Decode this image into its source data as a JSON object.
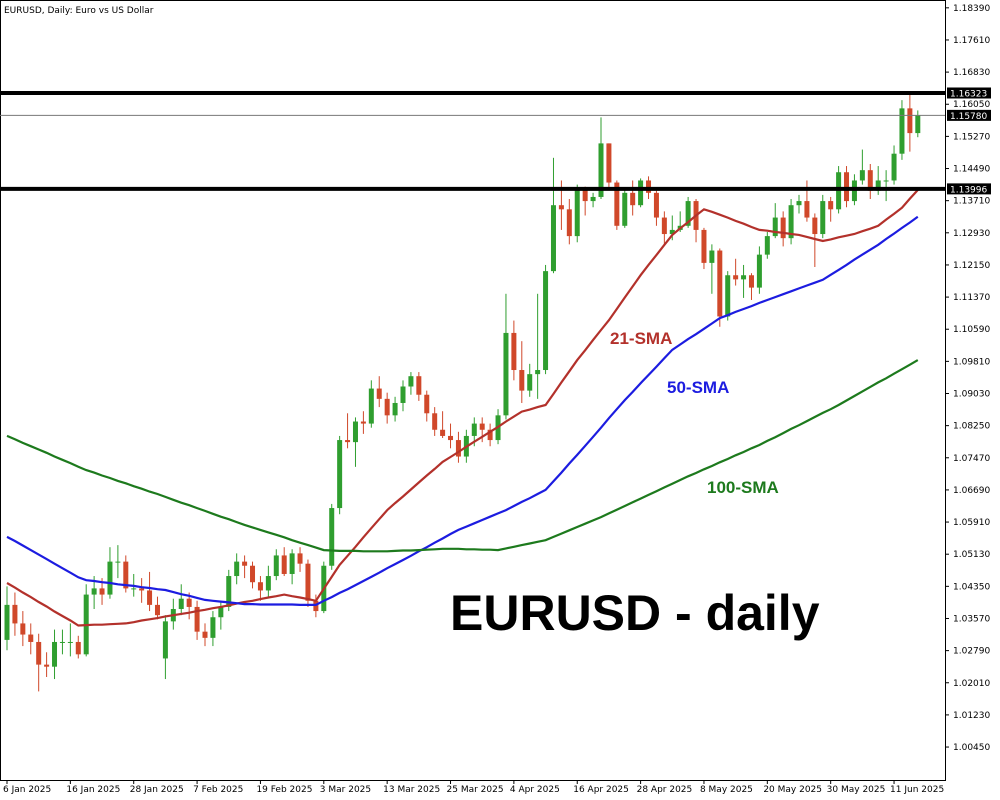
{
  "chart_data": {
    "type": "candlestick",
    "title": "EURUSD, Daily:  Euro vs US Dollar",
    "annotation": "EURUSD - daily",
    "up_color": "#2f9e2f",
    "down_color": "#d0482a",
    "categories": [
      "6 Jan 2025",
      null,
      null,
      null,
      null,
      null,
      null,
      null,
      "16 Jan 2025",
      null,
      null,
      null,
      null,
      null,
      null,
      null,
      "28 Jan 2025",
      null,
      null,
      null,
      null,
      null,
      null,
      null,
      "7 Feb 2025",
      null,
      null,
      null,
      null,
      null,
      null,
      null,
      "19 Feb 2025",
      null,
      null,
      null,
      null,
      null,
      null,
      null,
      "3 Mar 2025",
      null,
      null,
      null,
      null,
      null,
      null,
      null,
      "13 Mar 2025",
      null,
      null,
      null,
      null,
      null,
      null,
      null,
      "25 Mar 2025",
      null,
      null,
      null,
      null,
      null,
      null,
      null,
      "4 Apr 2025",
      null,
      null,
      null,
      null,
      null,
      null,
      null,
      "16 Apr 2025",
      null,
      null,
      null,
      null,
      null,
      null,
      null,
      "28 Apr 2025",
      null,
      null,
      null,
      null,
      null,
      null,
      null,
      "8 May 2025",
      null,
      null,
      null,
      null,
      null,
      null,
      null,
      "20 May 2025",
      null,
      null,
      null,
      null,
      null,
      null,
      null,
      "30 May 2025",
      null,
      null,
      null,
      null,
      null,
      null,
      null,
      "11 Jun 2025",
      null,
      null,
      null
    ],
    "ohlc": [
      [
        1.0305,
        1.0435,
        1.028,
        1.039
      ],
      [
        1.039,
        1.042,
        1.0315,
        1.0345
      ],
      [
        1.0345,
        1.0375,
        1.029,
        1.0318
      ],
      [
        1.0318,
        1.0345,
        1.027,
        1.03
      ],
      [
        1.03,
        1.032,
        1.018,
        1.0245
      ],
      [
        1.0245,
        1.0275,
        1.0215,
        1.024
      ],
      [
        1.024,
        1.033,
        1.021,
        1.03
      ],
      [
        1.03,
        1.033,
        1.027,
        1.03
      ],
      [
        1.03,
        1.0345,
        1.0265,
        1.03
      ],
      [
        1.03,
        1.0315,
        1.026,
        1.027
      ],
      [
        1.027,
        1.044,
        1.0265,
        1.0415
      ],
      [
        1.0415,
        1.046,
        1.038,
        1.043
      ],
      [
        1.043,
        1.0455,
        1.039,
        1.0415
      ],
      [
        1.0415,
        1.053,
        1.0405,
        1.0495
      ],
      [
        1.0495,
        1.0535,
        1.0455,
        1.0495
      ],
      [
        1.0495,
        1.051,
        1.042,
        1.043
      ],
      [
        1.043,
        1.0465,
        1.041,
        1.043
      ],
      [
        1.043,
        1.0455,
        1.0395,
        1.0425
      ],
      [
        1.0425,
        1.047,
        1.0375,
        1.039
      ],
      [
        1.039,
        1.041,
        1.0355,
        1.0365
      ],
      [
        1.026,
        1.0365,
        1.021,
        1.035
      ],
      [
        1.035,
        1.0405,
        1.033,
        1.038
      ],
      [
        1.038,
        1.044,
        1.0365,
        1.0405
      ],
      [
        1.0405,
        1.042,
        1.0355,
        1.0385
      ],
      [
        1.0385,
        1.04,
        1.0305,
        1.0325
      ],
      [
        1.0325,
        1.0345,
        1.029,
        1.031
      ],
      [
        1.031,
        1.0375,
        1.029,
        1.036
      ],
      [
        1.036,
        1.04,
        1.033,
        1.0385
      ],
      [
        1.0385,
        1.0475,
        1.0375,
        1.046
      ],
      [
        1.046,
        1.0515,
        1.044,
        1.0495
      ],
      [
        1.0495,
        1.051,
        1.0455,
        1.0485
      ],
      [
        1.0485,
        1.0495,
        1.043,
        1.0445
      ],
      [
        1.0445,
        1.046,
        1.04,
        1.0425
      ],
      [
        1.0425,
        1.0485,
        1.041,
        1.046
      ],
      [
        1.046,
        1.0525,
        1.045,
        1.051
      ],
      [
        1.051,
        1.053,
        1.046,
        1.0465
      ],
      [
        1.0465,
        1.0525,
        1.044,
        1.0515
      ],
      [
        1.0515,
        1.053,
        1.047,
        1.049
      ],
      [
        1.049,
        1.05,
        1.0385,
        1.04
      ],
      [
        1.04,
        1.0415,
        1.036,
        1.0375
      ],
      [
        1.0375,
        1.0495,
        1.037,
        1.0485
      ],
      [
        1.0485,
        1.0635,
        1.0475,
        1.0625
      ],
      [
        1.0625,
        1.08,
        1.061,
        1.079
      ],
      [
        1.079,
        1.0855,
        1.077,
        1.0785
      ],
      [
        1.0785,
        1.0845,
        1.0725,
        1.0835
      ],
      [
        1.0835,
        1.086,
        1.0805,
        1.083
      ],
      [
        1.083,
        1.0935,
        1.082,
        1.0915
      ],
      [
        1.0915,
        1.0945,
        1.087,
        1.089
      ],
      [
        1.089,
        1.0905,
        1.083,
        1.085
      ],
      [
        1.085,
        1.0895,
        1.0835,
        1.088
      ],
      [
        1.088,
        1.0935,
        1.086,
        1.092
      ],
      [
        1.092,
        1.0955,
        1.09,
        1.0945
      ],
      [
        1.0945,
        1.0955,
        1.0885,
        1.09
      ],
      [
        1.09,
        1.091,
        1.0835,
        1.0855
      ],
      [
        1.0855,
        1.087,
        1.08,
        1.0815
      ],
      [
        1.0815,
        1.086,
        1.0795,
        1.08
      ],
      [
        1.08,
        1.083,
        1.077,
        1.079
      ],
      [
        1.079,
        1.081,
        1.0735,
        1.075
      ],
      [
        1.075,
        1.0815,
        1.0735,
        1.08
      ],
      [
        1.08,
        1.0845,
        1.0775,
        1.083
      ],
      [
        1.083,
        1.0845,
        1.0785,
        1.0815
      ],
      [
        1.0815,
        1.083,
        1.0775,
        1.079
      ],
      [
        1.079,
        1.0865,
        1.078,
        1.085
      ],
      [
        1.085,
        1.1145,
        1.084,
        1.105
      ],
      [
        1.105,
        1.108,
        1.0935,
        1.096
      ],
      [
        1.096,
        1.103,
        1.088,
        1.091
      ],
      [
        1.091,
        1.0975,
        1.0895,
        1.095
      ],
      [
        1.095,
        1.1145,
        1.089,
        1.096
      ],
      [
        1.096,
        1.1215,
        1.095,
        1.12
      ],
      [
        1.12,
        1.1475,
        1.1195,
        1.136
      ],
      [
        1.136,
        1.142,
        1.13,
        1.135
      ],
      [
        1.135,
        1.1375,
        1.1265,
        1.1285
      ],
      [
        1.1285,
        1.141,
        1.127,
        1.14
      ],
      [
        1.14,
        1.1405,
        1.1335,
        1.137
      ],
      [
        1.137,
        1.139,
        1.1355,
        1.138
      ],
      [
        1.138,
        1.1573,
        1.1375,
        1.151
      ],
      [
        1.151,
        1.151,
        1.14,
        1.1415
      ],
      [
        1.1415,
        1.142,
        1.13,
        1.131
      ],
      [
        1.131,
        1.14,
        1.1305,
        1.139
      ],
      [
        1.139,
        1.142,
        1.1335,
        1.136
      ],
      [
        1.136,
        1.1425,
        1.1355,
        1.142
      ],
      [
        1.142,
        1.143,
        1.1375,
        1.139
      ],
      [
        1.139,
        1.1395,
        1.131,
        1.133
      ],
      [
        1.133,
        1.1345,
        1.1265,
        1.129
      ],
      [
        1.129,
        1.1335,
        1.1275,
        1.13
      ],
      [
        1.13,
        1.1345,
        1.1295,
        1.131
      ],
      [
        1.131,
        1.138,
        1.1305,
        1.137
      ],
      [
        1.137,
        1.1375,
        1.127,
        1.13
      ],
      [
        1.13,
        1.1305,
        1.1205,
        1.122
      ],
      [
        1.122,
        1.1265,
        1.1145,
        1.125
      ],
      [
        1.125,
        1.1255,
        1.1065,
        1.109
      ],
      [
        1.109,
        1.12,
        1.108,
        1.119
      ],
      [
        1.119,
        1.123,
        1.1165,
        1.118
      ],
      [
        1.118,
        1.1215,
        1.1135,
        1.119
      ],
      [
        1.119,
        1.1195,
        1.113,
        1.116
      ],
      [
        1.116,
        1.126,
        1.1145,
        1.124
      ],
      [
        1.124,
        1.1295,
        1.123,
        1.1285
      ],
      [
        1.1285,
        1.1365,
        1.128,
        1.133
      ],
      [
        1.133,
        1.1345,
        1.126,
        1.128
      ],
      [
        1.128,
        1.1375,
        1.1265,
        1.136
      ],
      [
        1.136,
        1.1385,
        1.134,
        1.137
      ],
      [
        1.137,
        1.142,
        1.132,
        1.133
      ],
      [
        1.133,
        1.134,
        1.121,
        1.129
      ],
      [
        1.129,
        1.1385,
        1.128,
        1.137
      ],
      [
        1.137,
        1.138,
        1.132,
        1.135
      ],
      [
        1.135,
        1.1455,
        1.134,
        1.144
      ],
      [
        1.144,
        1.1455,
        1.1355,
        1.137
      ],
      [
        1.137,
        1.1435,
        1.136,
        1.142
      ],
      [
        1.142,
        1.1495,
        1.141,
        1.1445
      ],
      [
        1.1445,
        1.146,
        1.1375,
        1.1395
      ],
      [
        1.1395,
        1.1455,
        1.1385,
        1.142
      ],
      [
        1.142,
        1.1445,
        1.137,
        1.142
      ],
      [
        1.142,
        1.1505,
        1.141,
        1.1485
      ],
      [
        1.1485,
        1.1615,
        1.147,
        1.1595
      ],
      [
        1.1595,
        1.1631,
        1.149,
        1.1535
      ],
      [
        1.1535,
        1.159,
        1.1525,
        1.1578
      ]
    ],
    "series": [
      {
        "name": "21-SMA",
        "color": "#b3312b",
        "values": [
          1.0443,
          1.0432,
          1.042,
          1.0409,
          1.0397,
          1.0386,
          1.0374,
          1.0363,
          1.0352,
          1.034,
          1.0341,
          1.0342,
          1.0342,
          1.0343,
          1.0344,
          1.0345,
          1.0348,
          1.0352,
          1.0355,
          1.0358,
          1.0362,
          1.0365,
          1.0368,
          1.0371,
          1.0375,
          1.0378,
          1.0382,
          1.0385,
          1.0389,
          1.0393,
          1.0397,
          1.04,
          1.0404,
          1.0408,
          1.0411,
          1.0415,
          1.0411,
          1.0408,
          1.0404,
          1.04,
          1.0429,
          1.0458,
          1.0487,
          1.0509,
          1.0531,
          1.0554,
          1.0576,
          1.0598,
          1.062,
          1.0637,
          1.0653,
          1.067,
          1.0687,
          1.0704,
          1.072,
          1.0737,
          1.0749,
          1.0761,
          1.0774,
          1.0786,
          1.0798,
          1.081,
          1.0822,
          1.0835,
          1.0847,
          1.0859,
          1.0864,
          1.087,
          1.0875,
          1.0902,
          1.093,
          1.0957,
          1.0984,
          1.1008,
          1.1033,
          1.1057,
          1.1081,
          1.1108,
          1.1136,
          1.1163,
          1.119,
          1.1215,
          1.1239,
          1.1264,
          1.1288,
          1.1304,
          1.1319,
          1.1335,
          1.135,
          1.1344,
          1.1337,
          1.133,
          1.1322,
          1.1315,
          1.1307,
          1.13,
          1.1298,
          1.1295,
          1.1293,
          1.129,
          1.1288,
          1.1283,
          1.1278,
          1.1273,
          1.1277,
          1.1282,
          1.1286,
          1.129,
          1.1297,
          1.1303,
          1.131,
          1.1325,
          1.1339,
          1.1354,
          1.1376,
          1.1397
        ]
      },
      {
        "name": "50-SMA",
        "color": "#1c1ce0",
        "values": [
          1.0555,
          1.0545,
          1.0534,
          1.0523,
          1.0512,
          1.0501,
          1.049,
          1.0479,
          1.0468,
          1.0457,
          1.045,
          1.0448,
          1.0445,
          1.0443,
          1.044,
          1.0438,
          1.0436,
          1.0433,
          1.0431,
          1.0428,
          1.0426,
          1.0421,
          1.0416,
          1.0412,
          1.0407,
          1.0402,
          1.04,
          1.0398,
          1.0396,
          1.0394,
          1.0392,
          1.0392,
          1.0391,
          1.0391,
          1.0391,
          1.0391,
          1.0391,
          1.039,
          1.039,
          1.039,
          1.04,
          1.0409,
          1.0419,
          1.0428,
          1.0438,
          1.0448,
          1.0458,
          1.0468,
          1.0479,
          1.0489,
          1.0499,
          1.0509,
          1.052,
          1.053,
          1.0541,
          1.0551,
          1.0562,
          1.0572,
          1.058,
          1.0588,
          1.0596,
          1.0604,
          1.0612,
          1.062,
          1.063,
          1.064,
          1.0649,
          1.0659,
          1.0669,
          1.069,
          1.0711,
          1.0733,
          1.0754,
          1.0776,
          1.0798,
          1.082,
          1.0843,
          1.0865,
          1.0887,
          1.0907,
          1.0928,
          1.0948,
          1.0968,
          1.0989,
          1.1009,
          1.1022,
          1.1035,
          1.1047,
          1.106,
          1.1073,
          1.1086,
          1.1093,
          1.1101,
          1.1108,
          1.1115,
          1.1123,
          1.113,
          1.1137,
          1.1144,
          1.1151,
          1.1158,
          1.1165,
          1.1172,
          1.1179,
          1.1191,
          1.1203,
          1.1215,
          1.1228,
          1.124,
          1.1252,
          1.1264,
          1.1278,
          1.1291,
          1.1305,
          1.1318,
          1.1332
        ]
      },
      {
        "name": "100-SMA",
        "color": "#1d7a1d",
        "values": [
          1.08,
          1.0792,
          1.0783,
          1.0775,
          1.0767,
          1.0759,
          1.075,
          1.0742,
          1.0734,
          1.0725,
          1.0717,
          1.0711,
          1.0704,
          1.0698,
          1.0691,
          1.0685,
          1.0678,
          1.0672,
          1.0665,
          1.0659,
          1.0652,
          1.0645,
          1.0638,
          1.0632,
          1.0625,
          1.0618,
          1.0611,
          1.0604,
          1.0598,
          1.0591,
          1.0584,
          1.0578,
          1.0572,
          1.0566,
          1.056,
          1.0554,
          1.0547,
          1.0541,
          1.0535,
          1.0529,
          1.0523,
          1.0522,
          1.0521,
          1.0521,
          1.0521,
          1.052,
          1.052,
          1.052,
          1.052,
          1.0521,
          1.0522,
          1.0522,
          1.0523,
          1.0524,
          1.0525,
          1.0526,
          1.0526,
          1.0526,
          1.0525,
          1.0525,
          1.0524,
          1.0524,
          1.0523,
          1.0527,
          1.0531,
          1.0535,
          1.0539,
          1.0543,
          1.0547,
          1.0555,
          1.0563,
          1.0571,
          1.0579,
          1.0587,
          1.0595,
          1.0603,
          1.0612,
          1.0621,
          1.063,
          1.0639,
          1.0648,
          1.0657,
          1.0666,
          1.0675,
          1.0684,
          1.0693,
          1.0702,
          1.071,
          1.0719,
          1.0727,
          1.0736,
          1.0744,
          1.0753,
          1.0761,
          1.077,
          1.0778,
          1.0788,
          1.0797,
          1.0807,
          1.0817,
          1.0826,
          1.0836,
          1.0846,
          1.0856,
          1.0865,
          1.0875,
          1.0886,
          1.0897,
          1.0908,
          1.0919,
          1.093,
          1.094,
          1.0951,
          1.0962,
          1.0973,
          1.0984
        ]
      }
    ],
    "levels": [
      {
        "value": 1.16323,
        "label": "1.16323",
        "color": "#000000",
        "width": 4
      },
      {
        "value": 1.1578,
        "label": "1.15780",
        "color": "#777777",
        "width": 1
      },
      {
        "value": 1.13996,
        "label": "1.13996",
        "color": "#000000",
        "width": 4
      }
    ],
    "ylim": [
      0.9965,
      1.1858
    ],
    "yticks": [
      {
        "value": 1.1839,
        "label": "1.18390"
      },
      {
        "value": 1.1761,
        "label": "1.17610"
      },
      {
        "value": 1.1683,
        "label": "1.16830"
      },
      {
        "value": 1.1605,
        "label": "1.16050"
      },
      {
        "value": 1.1527,
        "label": "1.15270"
      },
      {
        "value": 1.1449,
        "label": "1.14490"
      },
      {
        "value": 1.1371,
        "label": "1.13710"
      },
      {
        "value": 1.1293,
        "label": "1.12930"
      },
      {
        "value": 1.1215,
        "label": "1.12150"
      },
      {
        "value": 1.1137,
        "label": "1.11370"
      },
      {
        "value": 1.1059,
        "label": "1.10590"
      },
      {
        "value": 1.0981,
        "label": "1.09810"
      },
      {
        "value": 1.0903,
        "label": "1.09030"
      },
      {
        "value": 1.0825,
        "label": "1.08250"
      },
      {
        "value": 1.0747,
        "label": "1.07470"
      },
      {
        "value": 1.0669,
        "label": "1.06690"
      },
      {
        "value": 1.0591,
        "label": "1.05910"
      },
      {
        "value": 1.0513,
        "label": "1.05130"
      },
      {
        "value": 1.0435,
        "label": "1.04350"
      },
      {
        "value": 1.0357,
        "label": "1.03570"
      },
      {
        "value": 1.0279,
        "label": "1.02790"
      },
      {
        "value": 1.0201,
        "label": "1.02010"
      },
      {
        "value": 1.0123,
        "label": "1.01230"
      },
      {
        "value": 1.0045,
        "label": "1.00450"
      }
    ]
  }
}
